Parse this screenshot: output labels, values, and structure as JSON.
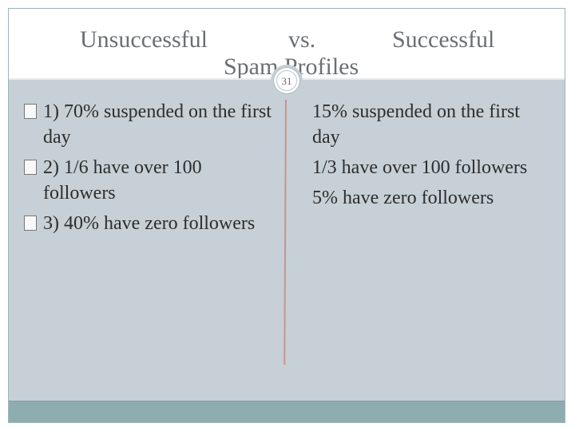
{
  "title": {
    "left": "Unsuccessful",
    "middle": "vs.",
    "right": "Successful",
    "subtitle": "Spam Profiles"
  },
  "page_number": "31",
  "unsuccessful_items": [
    {
      "prefix": "1)",
      "text": "70% suspended on the first day"
    },
    {
      "prefix": "2)",
      "text": "1/6 have over 100 followers"
    },
    {
      "prefix": "3)",
      "text": "40% have zero followers"
    }
  ],
  "successful_items": [
    {
      "text": "15% suspended on the first day"
    },
    {
      "text": "1/3 have over 100 followers"
    },
    {
      "text": "5% have zero followers"
    }
  ],
  "colors": {
    "title_text": "#6b6f73",
    "content_background": "#c6d0d6",
    "footer_background": "#8eadb1",
    "divider": "#c9948e",
    "body_text": "#2d2d2d"
  }
}
